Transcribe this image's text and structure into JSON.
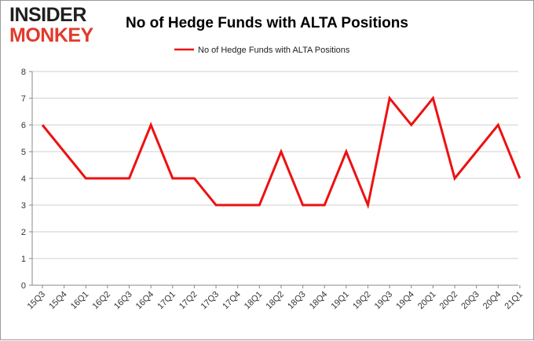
{
  "logo": {
    "line1": "INSIDER",
    "line2": "MONKEY"
  },
  "chart_data": {
    "type": "line",
    "title": "No of Hedge Funds with ALTA Positions",
    "xlabel": "",
    "ylabel": "",
    "categories": [
      "15Q3",
      "15Q4",
      "16Q1",
      "16Q2",
      "16Q3",
      "16Q4",
      "17Q1",
      "17Q2",
      "17Q3",
      "17Q4",
      "18Q1",
      "18Q2",
      "18Q3",
      "18Q4",
      "19Q1",
      "19Q2",
      "19Q3",
      "19Q4",
      "20Q1",
      "20Q2",
      "20Q3",
      "20Q4",
      "21Q1"
    ],
    "series": [
      {
        "name": "No of Hedge Funds with ALTA Positions",
        "color": "#ee1111",
        "values": [
          6,
          5,
          4,
          4,
          4,
          6,
          4,
          4,
          3,
          3,
          3,
          5,
          3,
          3,
          5,
          3,
          7,
          6,
          7,
          4,
          5,
          6,
          4
        ]
      }
    ],
    "ylim": [
      0,
      8
    ],
    "yticks": [
      0,
      1,
      2,
      3,
      4,
      5,
      6,
      7,
      8
    ],
    "grid": true,
    "legend": "top-center"
  }
}
